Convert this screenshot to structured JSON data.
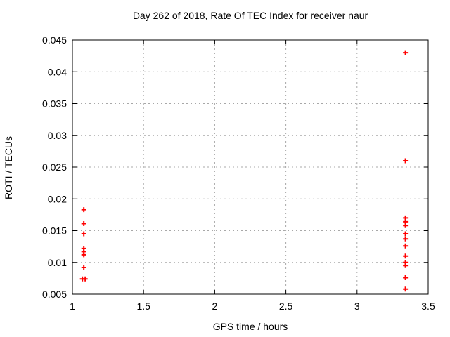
{
  "chart_data": {
    "type": "scatter",
    "title": "Day 262 of 2018, Rate Of TEC Index for receiver naur",
    "xlabel": "GPS time / hours",
    "ylabel": "ROTI / TECUs",
    "xlim": [
      1,
      3.5
    ],
    "ylim": [
      0.005,
      0.045
    ],
    "xticks": {
      "values": [
        1,
        1.5,
        2,
        2.5,
        3,
        3.5
      ],
      "labels": [
        "1",
        "1.5",
        "2",
        "2.5",
        "3",
        "3.5"
      ]
    },
    "yticks": {
      "values": [
        0.005,
        0.01,
        0.015,
        0.02,
        0.025,
        0.03,
        0.035,
        0.04,
        0.045
      ],
      "labels": [
        "0.005",
        "0.01",
        "0.015",
        "0.02",
        "0.025",
        "0.03",
        "0.035",
        "0.04",
        "0.045"
      ]
    },
    "grid": true,
    "legend_position": "none",
    "marker": "plus",
    "marker_color": "#ff0000",
    "grid_color": "#a8a8a8",
    "frame_color": "#000000",
    "series": [
      {
        "name": "ROTI",
        "points": [
          [
            1.08,
            0.0183
          ],
          [
            1.08,
            0.0161
          ],
          [
            1.08,
            0.0145
          ],
          [
            1.08,
            0.0122
          ],
          [
            1.08,
            0.0117
          ],
          [
            1.08,
            0.0112
          ],
          [
            1.08,
            0.0092
          ],
          [
            1.07,
            0.0074
          ],
          [
            1.09,
            0.0074
          ],
          [
            3.34,
            0.043
          ],
          [
            3.34,
            0.026
          ],
          [
            3.34,
            0.017
          ],
          [
            3.34,
            0.0164
          ],
          [
            3.34,
            0.0158
          ],
          [
            3.34,
            0.0145
          ],
          [
            3.34,
            0.0137
          ],
          [
            3.34,
            0.0126
          ],
          [
            3.34,
            0.011
          ],
          [
            3.34,
            0.01
          ],
          [
            3.34,
            0.0095
          ],
          [
            3.34,
            0.0076
          ],
          [
            3.34,
            0.0058
          ]
        ]
      }
    ]
  }
}
